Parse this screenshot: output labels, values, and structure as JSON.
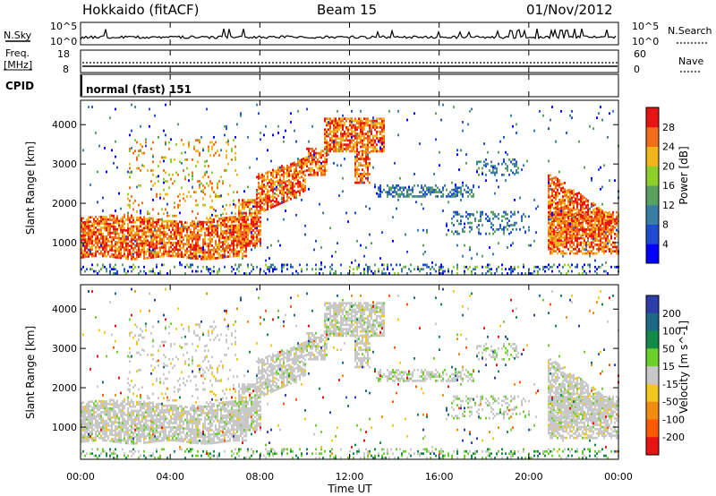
{
  "header": {
    "site": "Hokkaido (fitACF)",
    "beam": "Beam 15",
    "date": "01/Nov/2012"
  },
  "summary_panels": {
    "nsky": {
      "left_label": "N.Sky",
      "right_label": "N.Search",
      "left_ticks": [
        "10^5",
        "10^0"
      ],
      "right_ticks": [
        "10^5",
        "10^0"
      ]
    },
    "freq": {
      "left_label_line1": "Freq.",
      "left_label_line2": "[MHz]",
      "right_label": "Nave",
      "left_ticks": [
        "18",
        "8"
      ],
      "right_ticks": [
        "60",
        "0"
      ]
    },
    "cpid": {
      "label": "CPID",
      "mode_text": "normal (fast) 151"
    }
  },
  "chart_data": [
    {
      "type": "heatmap",
      "quantity": "Power",
      "colorbar_label": "Power [dB]",
      "ylabel": "Slant Range [km]",
      "ylim": [
        180,
        4620
      ],
      "yticks": [
        1000,
        2000,
        3000,
        4000
      ],
      "ytick_labels": [
        "1000",
        "2000",
        "3000",
        "4000"
      ],
      "xlim_hours": [
        0,
        24
      ],
      "colorbar_ticks": [
        "4",
        "8",
        "12",
        "16",
        "20",
        "24",
        "28"
      ],
      "colorbar_colors": [
        "#0000ff",
        "#1e4bd0",
        "#3a7ea6",
        "#5aa060",
        "#8fcf2a",
        "#f2b61c",
        "#f26d18",
        "#e81414"
      ],
      "value_range": [
        0,
        32
      ]
    },
    {
      "type": "heatmap",
      "quantity": "Velocity",
      "colorbar_label": "Velocity [m s^-1]",
      "ylabel": "Slant Range [km]",
      "ylim": [
        180,
        4620
      ],
      "yticks": [
        1000,
        2000,
        3000,
        4000
      ],
      "ytick_labels": [
        "1000",
        "2000",
        "3000",
        "4000"
      ],
      "xlim_hours": [
        0,
        24
      ],
      "colorbar_ticks": [
        "200",
        "100",
        "50",
        "15",
        "-15",
        "-50",
        "-100",
        "-200"
      ],
      "colorbar_colors": [
        "#2c3ca8",
        "#1e6a86",
        "#148a4a",
        "#6cd02a",
        "#c8c8c8",
        "#f2c81e",
        "#f28c10",
        "#ff5a00",
        "#e81414"
      ]
    }
  ],
  "time_axis": {
    "label": "Time UT",
    "ticks": [
      "00:00",
      "04:00",
      "08:00",
      "12:00",
      "16:00",
      "20:00",
      "00:00"
    ]
  }
}
